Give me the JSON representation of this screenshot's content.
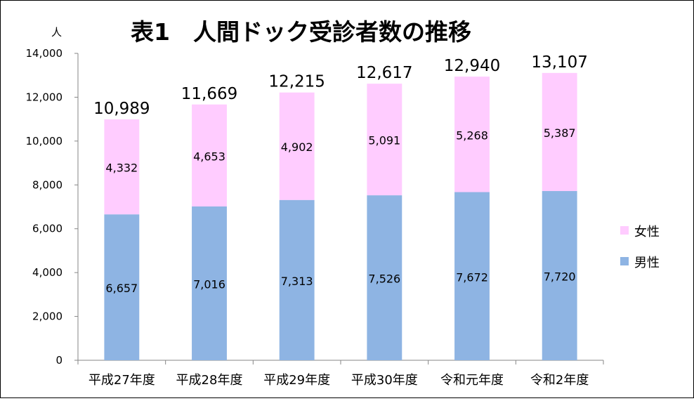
{
  "chart_data": {
    "type": "bar",
    "stacked": true,
    "title": "表1　人間ドック受診者数の推移",
    "ylabel": "人",
    "ylim": [
      0,
      14000
    ],
    "yticks": [
      "0",
      "2,000",
      "4,000",
      "6,000",
      "8,000",
      "10,000",
      "12,000",
      "14,000"
    ],
    "categories": [
      "平成27年度",
      "平成28年度",
      "平成29年度",
      "平成30年度",
      "令和元年度",
      "令和2年度"
    ],
    "series": [
      {
        "name": "男性",
        "color": "#8EB4E3",
        "values": [
          6657,
          7016,
          7313,
          7526,
          7672,
          7720
        ],
        "labels": [
          "6,657",
          "7,016",
          "7,313",
          "7,526",
          "7,672",
          "7,720"
        ]
      },
      {
        "name": "女性",
        "color": "#FFCCFF",
        "values": [
          4332,
          4653,
          4902,
          5091,
          5268,
          5387
        ],
        "labels": [
          "4,332",
          "4,653",
          "4,902",
          "5,091",
          "5,268",
          "5,387"
        ]
      }
    ],
    "totals": [
      "10,989",
      "11,669",
      "12,215",
      "12,617",
      "12,940",
      "13,107"
    ],
    "legend": {
      "position": "right",
      "entries": [
        "女性",
        "男性"
      ]
    },
    "grid": false
  }
}
